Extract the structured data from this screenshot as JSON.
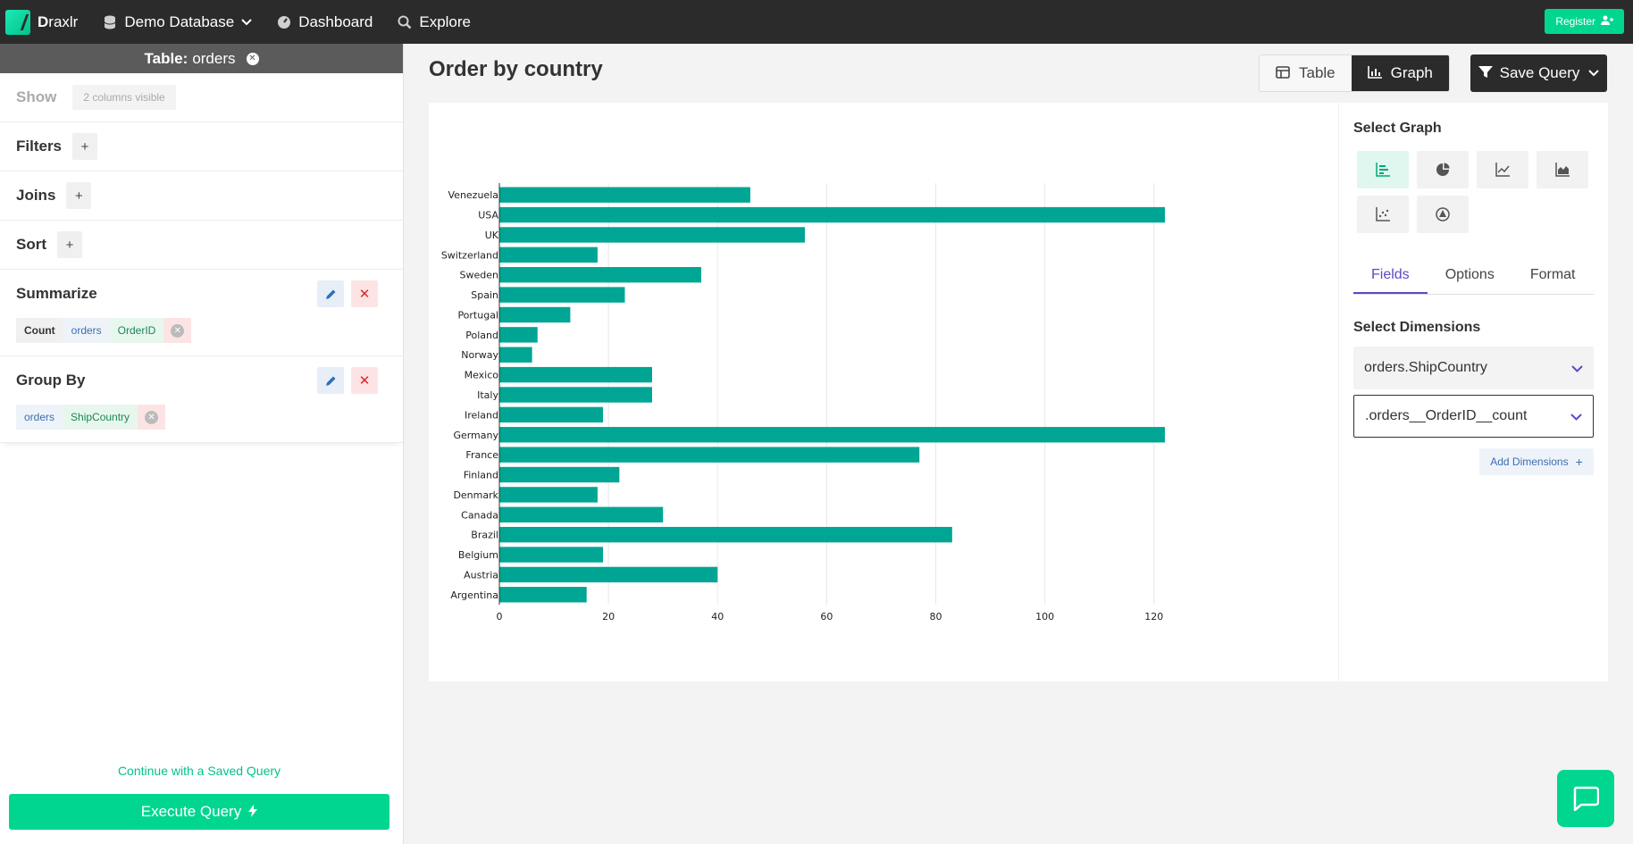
{
  "nav": {
    "logo_first": "D",
    "logo_rest": "raxlr",
    "database": "Demo Database",
    "dashboard": "Dashboard",
    "explore": "Explore",
    "register": "Register"
  },
  "sidebar": {
    "table_label": "Table:",
    "table_name": "orders",
    "show": {
      "title": "Show",
      "chip": "2 columns visible"
    },
    "filters": {
      "title": "Filters",
      "add": "+"
    },
    "joins": {
      "title": "Joins",
      "add": "+"
    },
    "sort": {
      "title": "Sort",
      "add": "+"
    },
    "summarize": {
      "title": "Summarize",
      "agg": "Count",
      "table": "orders",
      "column": "OrderID"
    },
    "group_by": {
      "title": "Group By",
      "table": "orders",
      "column": "ShipCountry"
    },
    "continue_link": "Continue with a Saved Query",
    "execute": "Execute Query"
  },
  "main": {
    "title": "Order by country",
    "view_table": "Table",
    "view_graph": "Graph",
    "save_query": "Save Query"
  },
  "panel": {
    "select_graph": "Select Graph",
    "graph_types": [
      {
        "icon": "bar-chart-icon",
        "active": true
      },
      {
        "icon": "pie-chart-icon",
        "active": false
      },
      {
        "icon": "line-chart-icon",
        "active": false
      },
      {
        "icon": "area-chart-icon",
        "active": false
      },
      {
        "icon": "scatter-chart-icon",
        "active": false
      },
      {
        "icon": "funnel-chart-icon",
        "active": false
      }
    ],
    "tabs": [
      "Fields",
      "Options",
      "Format"
    ],
    "active_tab": "Fields",
    "select_dimensions": "Select Dimensions",
    "dimension_1": "orders.ShipCountry",
    "dimension_2": ".orders__OrderID__count",
    "add_dimensions": "Add Dimensions"
  },
  "chart_data": {
    "type": "bar",
    "orientation": "horizontal",
    "categories": [
      "Venezuela",
      "USA",
      "UK",
      "Switzerland",
      "Sweden",
      "Spain",
      "Portugal",
      "Poland",
      "Norway",
      "Mexico",
      "Italy",
      "Ireland",
      "Germany",
      "France",
      "Finland",
      "Denmark",
      "Canada",
      "Brazil",
      "Belgium",
      "Austria",
      "Argentina"
    ],
    "values": [
      46,
      122,
      56,
      18,
      37,
      23,
      13,
      7,
      6,
      28,
      28,
      19,
      122,
      77,
      22,
      18,
      30,
      83,
      19,
      40,
      16
    ],
    "xlim": [
      0,
      122
    ],
    "xticks": [
      0,
      20,
      40,
      60,
      80,
      100,
      120
    ],
    "grid": true,
    "color": "#00a693"
  }
}
